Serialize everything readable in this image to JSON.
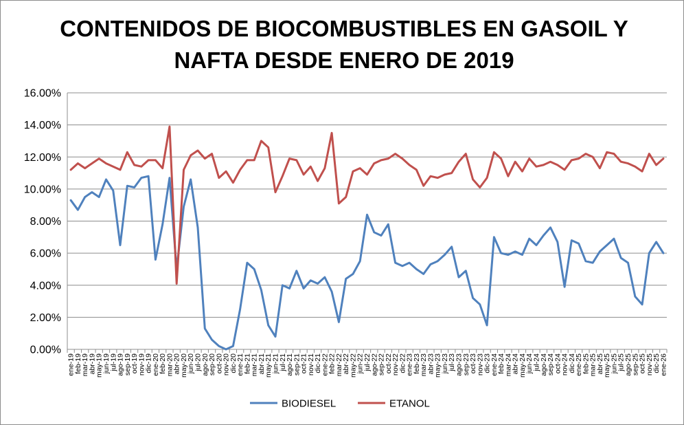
{
  "chart_data": {
    "type": "line",
    "title": "CONTENIDOS DE BIOCOMBUSTIBLES EN GASOIL Y NAFTA DESDE ENERO DE 2019",
    "xlabel": "",
    "ylabel": "",
    "ylim": [
      0,
      0.16
    ],
    "y_ticks": [
      "0.00%",
      "2.00%",
      "4.00%",
      "6.00%",
      "8.00%",
      "10.00%",
      "12.00%",
      "14.00%",
      "16.00%"
    ],
    "grid": true,
    "legend_position": "bottom",
    "categories": [
      "ene-19",
      "feb-19",
      "mar-19",
      "abr-19",
      "may-19",
      "jun-19",
      "jul-19",
      "ago-19",
      "sep-19",
      "oct-19",
      "nov-19",
      "dic-19",
      "ene-20",
      "feb-20",
      "mar-20",
      "abr-20",
      "may-20",
      "jun-20",
      "jul-20",
      "ago-20",
      "sep-20",
      "oct-20",
      "nov-20",
      "dic-20",
      "ene-21",
      "feb-21",
      "mar-21",
      "abr-21",
      "may-21",
      "jun-21",
      "jul-21",
      "ago-21",
      "sep-21",
      "oct-21",
      "nov-21",
      "dic-21",
      "ene-22",
      "feb-22",
      "mar-22",
      "abr-22",
      "may-22",
      "jun-22",
      "jul-22",
      "ago-22",
      "sep-22",
      "oct-22",
      "nov-22",
      "dic-22",
      "ene-23",
      "feb-23",
      "mar-23",
      "abr-23",
      "may-23",
      "jun-23",
      "jul-23",
      "ago-23",
      "sep-23",
      "oct-23",
      "nov-23",
      "dic-23",
      "ene-24",
      "feb-24",
      "mar-24",
      "abr-24",
      "may-24",
      "jun-24",
      "jul-24",
      "ago-24",
      "sep-24",
      "oct-24",
      "nov-24",
      "dic-24",
      "ene-25",
      "feb-25",
      "mar-25",
      "abr-25",
      "may-25",
      "jun-25",
      "jul-25",
      "ago-25",
      "sep-25",
      "oct-25",
      "nov-25",
      "dic-25",
      "ene-26"
    ],
    "series": [
      {
        "name": "BIODIESEL",
        "color": "#4f81bd",
        "values": [
          0.093,
          0.087,
          0.095,
          0.098,
          0.095,
          0.106,
          0.099,
          0.065,
          0.102,
          0.101,
          0.107,
          0.108,
          0.056,
          0.078,
          0.107,
          0.05,
          0.089,
          0.106,
          0.076,
          0.013,
          0.006,
          0.002,
          0.0,
          0.002,
          0.025,
          0.054,
          0.05,
          0.037,
          0.015,
          0.008,
          0.04,
          0.038,
          0.049,
          0.038,
          0.043,
          0.041,
          0.045,
          0.036,
          0.017,
          0.044,
          0.047,
          0.055,
          0.084,
          0.073,
          0.071,
          0.078,
          0.054,
          0.052,
          0.054,
          0.05,
          0.047,
          0.053,
          0.055,
          0.059,
          0.064,
          0.045,
          0.049,
          0.032,
          0.028,
          0.015,
          0.07,
          0.06,
          0.059,
          0.061,
          0.059,
          0.069,
          0.065,
          0.071,
          0.076,
          0.067,
          0.039,
          0.068,
          0.066,
          0.055,
          0.054,
          0.061,
          0.065,
          0.069,
          0.057,
          0.054,
          0.033,
          0.028,
          0.06,
          0.067,
          0.06
        ]
      },
      {
        "name": "ETANOL",
        "color": "#c0504d",
        "values": [
          0.112,
          0.116,
          0.113,
          0.116,
          0.119,
          0.116,
          0.114,
          0.112,
          0.123,
          0.115,
          0.114,
          0.118,
          0.118,
          0.113,
          0.139,
          0.041,
          0.112,
          0.121,
          0.124,
          0.119,
          0.122,
          0.107,
          0.111,
          0.104,
          0.112,
          0.118,
          0.118,
          0.13,
          0.126,
          0.098,
          0.108,
          0.119,
          0.118,
          0.109,
          0.114,
          0.105,
          0.113,
          0.135,
          0.091,
          0.095,
          0.111,
          0.113,
          0.109,
          0.116,
          0.118,
          0.119,
          0.122,
          0.119,
          0.115,
          0.112,
          0.102,
          0.108,
          0.107,
          0.109,
          0.11,
          0.117,
          0.122,
          0.106,
          0.101,
          0.107,
          0.123,
          0.119,
          0.108,
          0.117,
          0.111,
          0.119,
          0.114,
          0.115,
          0.117,
          0.115,
          0.112,
          0.118,
          0.119,
          0.122,
          0.12,
          0.113,
          0.123,
          0.122,
          0.117,
          0.116,
          0.114,
          0.111,
          0.122,
          0.115,
          0.119
        ]
      }
    ]
  }
}
